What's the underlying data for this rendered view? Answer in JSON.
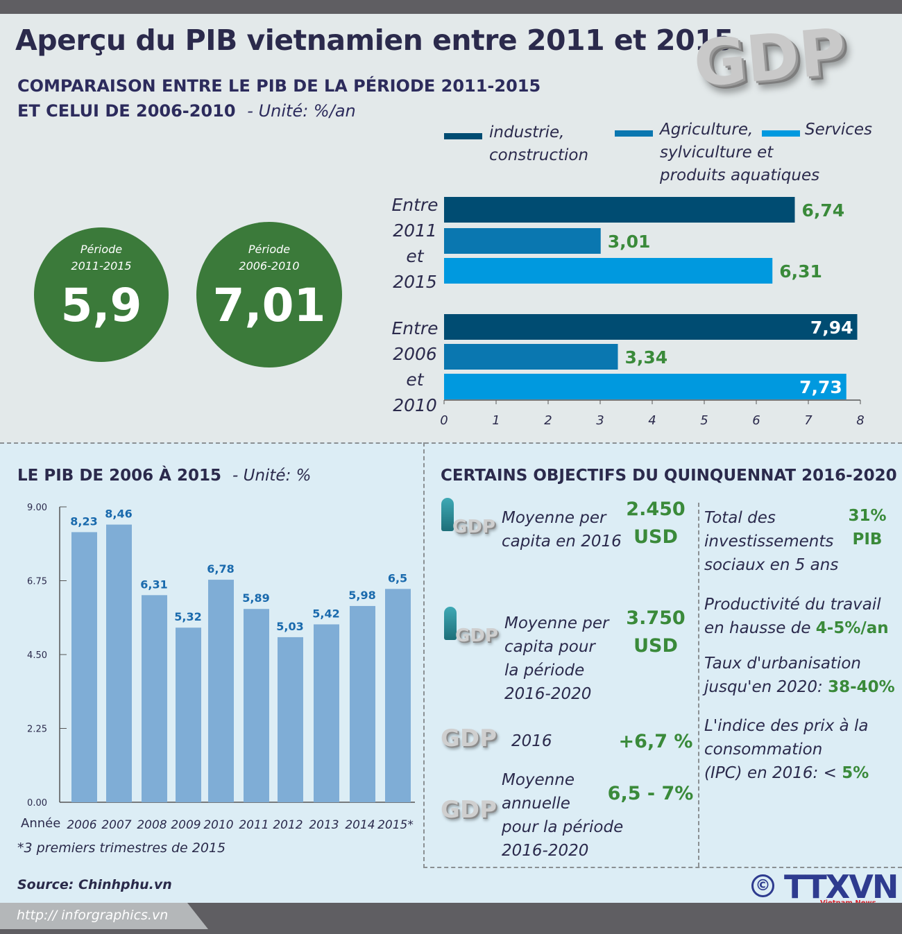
{
  "title": "Aperçu du PIB vietnamien entre 2011 et 2015",
  "logo_text": "GDP",
  "section1": {
    "heading_line1": "COMPARAISON ENTRE LE PIB DE LA PÉRIODE 2011-2015",
    "heading_line2": "ET CELUI DE 2006-2010",
    "unit": "- Unité: %/an"
  },
  "circles": [
    {
      "period": "Période",
      "range": "2011-2015",
      "value": "5,9"
    },
    {
      "period": "Période",
      "range": "2006-2010",
      "value": "7,01"
    }
  ],
  "chart_data": [
    {
      "type": "bar",
      "orientation": "horizontal",
      "title": "",
      "xlim": [
        0,
        8
      ],
      "x_ticks": [
        "0",
        "1",
        "2",
        "3",
        "4",
        "5",
        "6",
        "7",
        "8"
      ],
      "legend_placement": "top",
      "groups": [
        [
          "Entre",
          "2011",
          "et",
          "2015"
        ],
        [
          "Entre",
          "2006",
          "et",
          "2010"
        ]
      ],
      "series": [
        {
          "name": "industrie, construction",
          "name_lines": [
            "industrie,",
            "construction"
          ],
          "color": "#004c72",
          "values": [
            6.74,
            7.94
          ],
          "labels": [
            "6,74",
            "7,94"
          ]
        },
        {
          "name": "Agriculture, sylviculture et produits aquatiques",
          "name_lines": [
            "Agriculture,",
            "sylviculture et",
            "produits aquatiques"
          ],
          "color": "#0a77b0",
          "values": [
            3.01,
            3.34
          ],
          "labels": [
            "3,01",
            "3,34"
          ]
        },
        {
          "name": "Services",
          "name_lines": [
            "Services"
          ],
          "color": "#0099df",
          "values": [
            6.31,
            7.73
          ],
          "labels": [
            "6,31",
            "7,73"
          ]
        }
      ]
    },
    {
      "type": "bar",
      "title": "LE PIB DE 2006 À 2015",
      "unit": "- Unité: %",
      "xlabel": "Année",
      "ylim": [
        0,
        9
      ],
      "y_ticks": [
        "0.00",
        "2.25",
        "4.50",
        "6.75",
        "9.00"
      ],
      "bar_color": "#7fadd6",
      "label_color": "#1a6aad",
      "categories": [
        "2006",
        "2007",
        "2008",
        "2009",
        "2010",
        "2011",
        "2012",
        "2013",
        "2014",
        "2015*"
      ],
      "values": [
        8.23,
        8.46,
        6.31,
        5.32,
        6.78,
        5.89,
        5.03,
        5.42,
        5.98,
        6.5
      ],
      "labels": [
        "8,23",
        "8,46",
        "6,31",
        "5,32",
        "6,78",
        "5,89",
        "5,03",
        "5,42",
        "5,98",
        "6,5"
      ],
      "footnote": "*3 premiers trimestres de 2015"
    }
  ],
  "objectives": {
    "heading": "CERTAINS OBJECTIFS DU QUINQUENNAT 2016-2020",
    "icon_text": "GDP",
    "left": [
      {
        "label": [
          "Moyenne per",
          "capita en 2016"
        ],
        "value": [
          "2.450",
          "USD"
        ]
      },
      {
        "label": [
          "Moyenne per",
          "capita pour",
          "la période",
          "2016-2020"
        ],
        "value": [
          "3.750",
          "USD"
        ]
      },
      {
        "label": [
          "2016"
        ],
        "value": [
          "+6,7 %"
        ]
      },
      {
        "label": [
          "Moyenne",
          "annuelle",
          "pour la période",
          "2016-2020"
        ],
        "value": [
          "6,5 - 7%"
        ]
      }
    ],
    "right": [
      {
        "label": [
          "Total des",
          "investissements",
          "sociaux en 5 ans"
        ],
        "value": [
          "31%",
          "PIB"
        ]
      },
      {
        "text1": "Productivité du travail",
        "text2": "en hausse de ",
        "value": "4-5%/an"
      },
      {
        "text1": "Taux d'urbanisation",
        "text2": "jusqu'en 2020: ",
        "value": "38-40%"
      },
      {
        "text1": "L'indice des prix à la",
        "text1b": "consommation",
        "text2": "(IPC) en 2016: < ",
        "value": "5%"
      }
    ]
  },
  "source": "Source: Chinhphu.vn",
  "url": "http:// inforgraphics.vn",
  "agency": {
    "copyright": "©",
    "name": "TTXVN",
    "tagline": "Vietnam News Agency"
  },
  "colors": {
    "green": "#3b7a3a",
    "navy": "#2b2a4c",
    "bg_top": "#e3e9ea",
    "bg_bottom": "#dcedf5"
  }
}
